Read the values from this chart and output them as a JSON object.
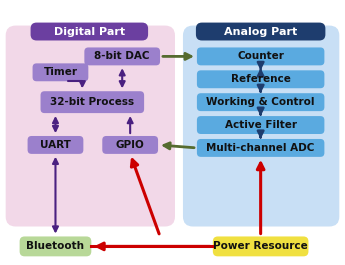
{
  "bg_color": "#ffffff",
  "digital_bg": "#f2d8e8",
  "digital_header_bg": "#6b3fa0",
  "digital_header_text": "Digital Part",
  "analog_bg": "#c8dff5",
  "analog_header_bg": "#1e3d6e",
  "analog_header_text": "Analog Part",
  "dac_box": {
    "label": "8-bit DAC",
    "color": "#9b80cc"
  },
  "timer_box": {
    "label": "Timer",
    "color": "#9b80cc"
  },
  "process_box": {
    "label": "32-bit Process",
    "color": "#9b80cc"
  },
  "uart_box": {
    "label": "UART",
    "color": "#9b80cc"
  },
  "gpio_box": {
    "label": "GPIO",
    "color": "#9b80cc"
  },
  "bluetooth_box": {
    "label": "Bluetooth",
    "color": "#b8d898"
  },
  "counter_box": {
    "label": "Counter",
    "color": "#5aaae0"
  },
  "reference_box": {
    "label": "Reference",
    "color": "#5aaae0"
  },
  "working_box": {
    "label": "Working & Control",
    "color": "#5aaae0"
  },
  "filter_box": {
    "label": "Active Filter",
    "color": "#5aaae0"
  },
  "adc_box": {
    "label": "Multi-channel ADC",
    "color": "#5aaae0"
  },
  "power_box": {
    "label": "Power Resource",
    "color": "#f0e040"
  },
  "arrow_olive": "#556b2f",
  "arrow_navy": "#1e3d6e",
  "arrow_purple": "#4a2080",
  "arrow_red": "#cc0000"
}
